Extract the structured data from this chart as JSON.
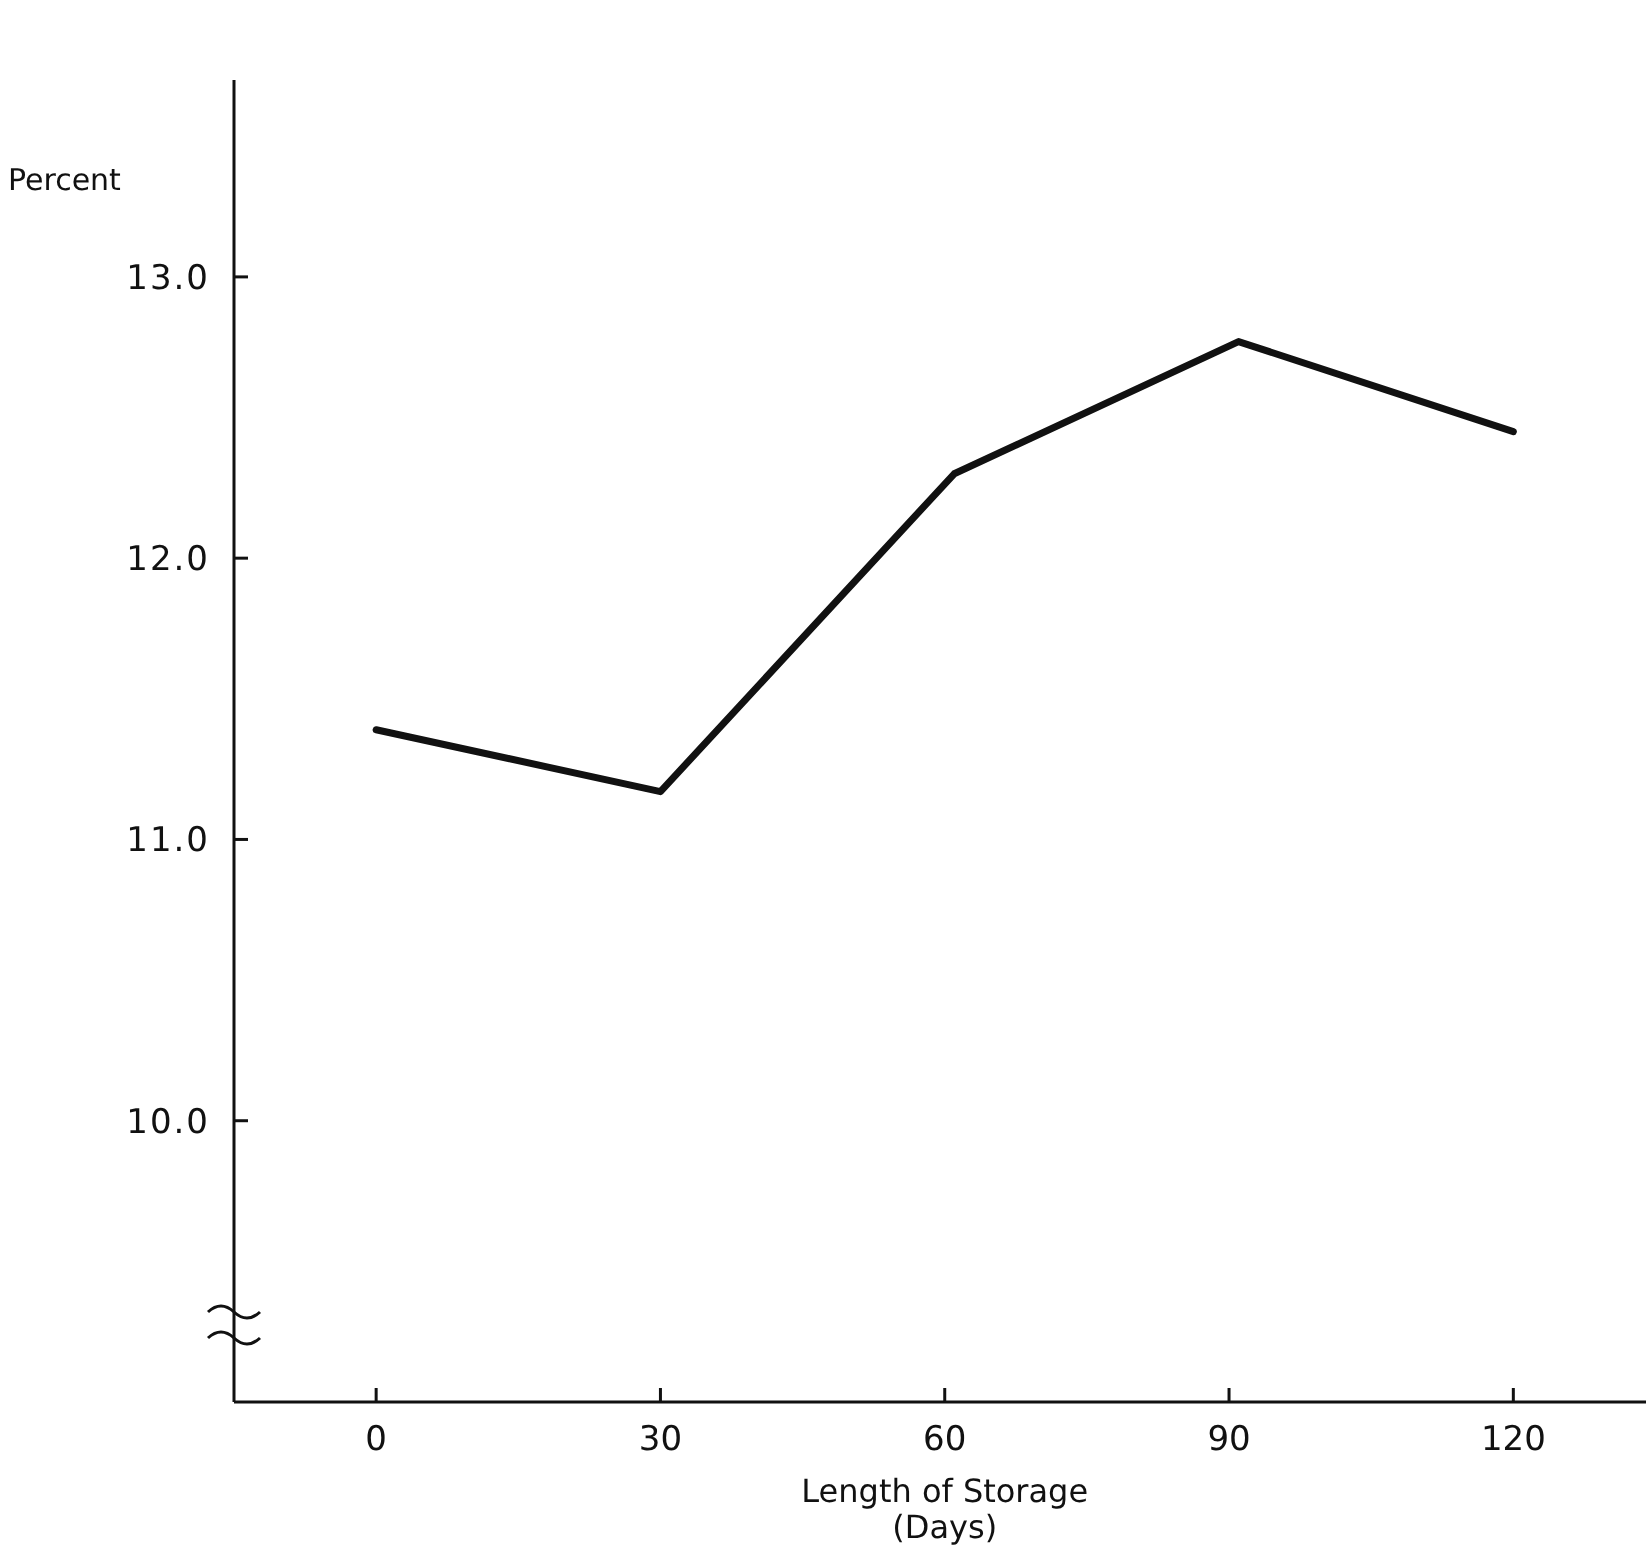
{
  "chart_data": {
    "type": "line",
    "ylabel": "Percent",
    "xlabel": "Length of Storage\n(Days)",
    "x": [
      0,
      30,
      61,
      91,
      120
    ],
    "series": [
      {
        "color": "#111111",
        "values": [
          11.39,
          11.17,
          12.3,
          12.77,
          12.45
        ]
      }
    ],
    "xlim": [
      -15,
      134
    ],
    "xticks": [
      0,
      30,
      60,
      90,
      120
    ],
    "ylim": [
      9.0,
      13.7
    ],
    "yticks": [
      {
        "value": 10,
        "label": "10.0"
      },
      {
        "value": 11,
        "label": "11.0"
      },
      {
        "value": 12,
        "label": "12.0"
      },
      {
        "value": 13,
        "label": "13.0"
      }
    ],
    "grid": false,
    "marker": "none",
    "line_style": "solid"
  }
}
